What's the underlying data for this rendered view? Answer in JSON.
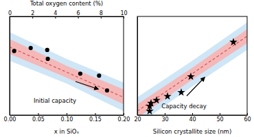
{
  "chart_data": [
    {
      "type": "scatter",
      "x_label": "x in SiOₓ",
      "top_axis_label": "Total oxygen content (%)",
      "xlim": [
        0,
        0.2
      ],
      "xticks": [
        {
          "value": 0,
          "label": "0.00"
        },
        {
          "value": 0.05,
          "label": "0.05"
        },
        {
          "value": 0.1,
          "label": "0.10"
        },
        {
          "value": 0.15,
          "label": "0.15"
        },
        {
          "value": 0.2,
          "label": "0.20"
        }
      ],
      "x2lim": [
        0,
        10
      ],
      "x2ticks": [
        0,
        2,
        4,
        6,
        8,
        10
      ],
      "ylim": [
        0,
        1
      ],
      "tick_labels": "x",
      "annotations": [
        {
          "text": "Initial capacity"
        }
      ],
      "series": [
        {
          "type": "band",
          "color": "#cfe6f7",
          "x": [
            0,
            0.1,
            0.2
          ],
          "lower": [
            0.55,
            0.32,
            0.04
          ],
          "upper": [
            0.84,
            0.57,
            0.33
          ]
        },
        {
          "type": "band",
          "color": "#f4b8b8",
          "x": [
            0,
            0.1,
            0.2
          ],
          "lower": [
            0.62,
            0.38,
            0.11
          ],
          "upper": [
            0.77,
            0.5,
            0.26
          ]
        },
        {
          "type": "line",
          "line_style": "dashed",
          "color": "#d9534f",
          "x": [
            0,
            0.2
          ],
          "values": [
            0.69,
            0.18
          ]
        },
        {
          "type": "scatter",
          "marker": "circle",
          "color": "#000000",
          "x": [
            0.008,
            0.037,
            0.066,
            0.067,
            0.124,
            0.157,
            0.171
          ],
          "values": [
            0.65,
            0.68,
            0.66,
            0.57,
            0.42,
            0.4,
            0.25
          ]
        }
      ]
    },
    {
      "type": "scatter",
      "x_label": "Silicon crystallite size (nm)",
      "xlim": [
        20,
        60
      ],
      "xticks": [
        20,
        30,
        40,
        50,
        60
      ],
      "ylim": [
        0,
        1
      ],
      "tick_labels": "x",
      "annotations": [
        {
          "text": "Capacity decay"
        }
      ],
      "series": [
        {
          "type": "band",
          "color": "#cfe6f7",
          "x": [
            20,
            40,
            60
          ],
          "lower": [
            -0.1,
            0.29,
            0.66
          ],
          "upper": [
            0.18,
            0.55,
            0.94
          ]
        },
        {
          "type": "band",
          "color": "#f4b8b8",
          "x": [
            20,
            40,
            60
          ],
          "lower": [
            -0.03,
            0.36,
            0.73
          ],
          "upper": [
            0.11,
            0.48,
            0.87
          ]
        },
        {
          "type": "line",
          "line_style": "dashed",
          "color": "#d9534f",
          "x": [
            20,
            60
          ],
          "values": [
            0.04,
            0.8
          ]
        },
        {
          "type": "scatter",
          "marker": "star",
          "color": "#000000",
          "x": [
            24.5,
            24.5,
            25,
            27,
            31,
            36,
            39.5,
            55
          ],
          "values": [
            0.04,
            0.09,
            0.12,
            0.15,
            0.19,
            0.23,
            0.39,
            0.74
          ]
        }
      ]
    }
  ]
}
